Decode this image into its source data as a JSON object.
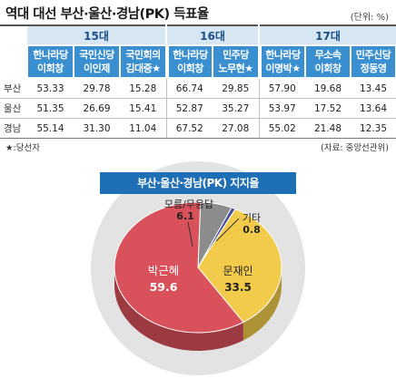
{
  "header": {
    "title": "역대 대선 부산·울산·경남(PK) 득표율",
    "unit": "(단위: %)"
  },
  "table": {
    "groups": [
      {
        "label": "15대",
        "candidates": [
          "한나라당\n이회창",
          "국민신당\n이인제",
          "국민회의\n김대중★"
        ]
      },
      {
        "label": "16대",
        "candidates": [
          "한나라당\n이회창",
          "민주당\n노무현★"
        ]
      },
      {
        "label": "17대",
        "candidates": [
          "한나라당\n이명박★",
          "무소속\n이회창",
          "민주신당\n정동영"
        ]
      }
    ],
    "rows": [
      {
        "region": "부산",
        "values": [
          "53.33",
          "29.78",
          "15.28",
          "66.74",
          "29.85",
          "57.90",
          "19.68",
          "13.45"
        ]
      },
      {
        "region": "울산",
        "values": [
          "51.35",
          "26.69",
          "15.41",
          "52.87",
          "35.27",
          "53.97",
          "17.52",
          "13.64"
        ]
      },
      {
        "region": "경남",
        "values": [
          "55.14",
          "31.30",
          "11.04",
          "67.52",
          "27.08",
          "55.02",
          "21.48",
          "12.35"
        ]
      }
    ],
    "footnote": "★:당선자",
    "source": "(자료: 중앙선관위)"
  },
  "chart_data": {
    "type": "pie",
    "title": "부산·울산·경남(PK) 지지율",
    "slices": [
      {
        "label": "박근혜",
        "value": 59.6,
        "color": "#d9515b"
      },
      {
        "label": "문재인",
        "value": 33.5,
        "color": "#f2cb4b"
      },
      {
        "label": "기타",
        "value": 0.8,
        "color": "#3b4f9a"
      },
      {
        "label": "모름/무응답",
        "value": 6.1,
        "color": "#8c8c8c"
      }
    ],
    "slice_texts": {
      "park_name": "박근혜",
      "park_value": "59.6",
      "moon_name": "문재인",
      "moon_value": "33.5",
      "etc_name": "기타",
      "etc_value": "0.8",
      "unknown_name": "모름/무응답",
      "unknown_value": "6.1"
    }
  }
}
